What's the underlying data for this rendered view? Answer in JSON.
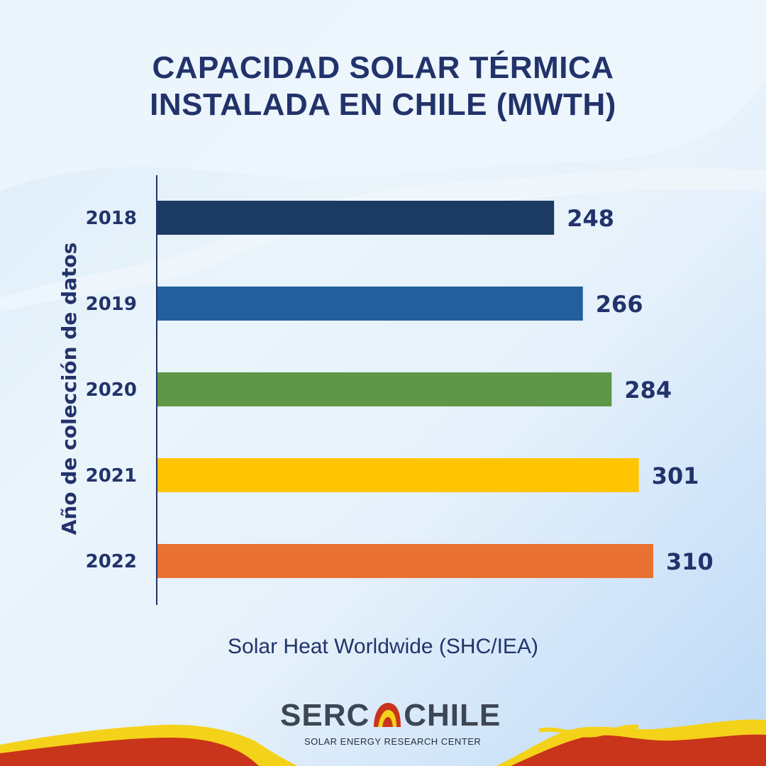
{
  "title": {
    "line1": "CAPACIDAD SOLAR TÉRMICA",
    "line2": "INSTALADA EN CHILE (MWTH)"
  },
  "source": "Solar Heat Worldwide (SHC/IEA)",
  "logo": {
    "left": "SERC",
    "right": "CHILE",
    "subtitle": "SOLAR ENERGY RESEARCH CENTER"
  },
  "chart_data": {
    "type": "bar",
    "orientation": "horizontal",
    "title": "CAPACIDAD SOLAR TÉRMICA INSTALADA EN CHILE (MWTH)",
    "ylabel": "Año de colección de datos",
    "xlabel": "",
    "categories": [
      "2018",
      "2019",
      "2020",
      "2021",
      "2022"
    ],
    "values": [
      248,
      266,
      284,
      301,
      310
    ],
    "data_labels": [
      "248",
      "266",
      "284",
      "301",
      "310"
    ],
    "colors": [
      "#1b3b63",
      "#21609c",
      "#5e9747",
      "#ffc400",
      "#e97131"
    ],
    "xlim": [
      0,
      310
    ],
    "grid": false,
    "legend": "none"
  },
  "colors": {
    "text": "#22336b",
    "accent_red": "#c9351a",
    "accent_yellow": "#f5d21a"
  }
}
